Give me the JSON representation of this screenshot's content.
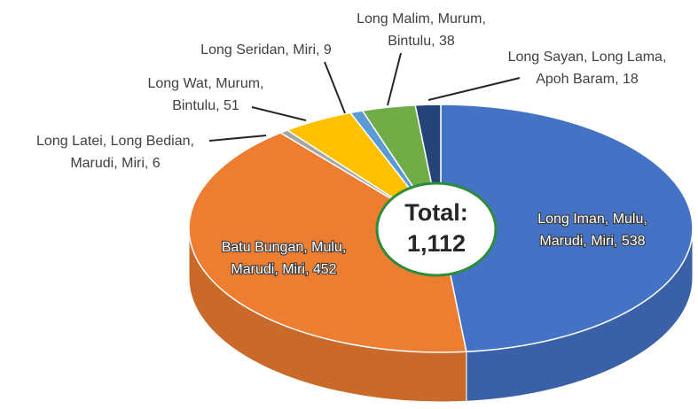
{
  "chart_data": {
    "type": "pie3d",
    "values": [
      538,
      452,
      6,
      51,
      9,
      38,
      18
    ],
    "value_labels": [
      "Long Iman, Mulu,\nMarudi, Miri, 538",
      "Batu Bungan, Mulu,\nMarudi, Miri, 452",
      "Long Latei, Long Bedian,\nMarudi, Miri, 6",
      "Long Wat, Murum,\nBintulu, 51",
      "Long Seridan, Miri, 9",
      "Long Malim, Murum,\nBintulu, 38",
      "Long Sayan, Long Lama,\nApoh Baram, 18"
    ],
    "colors": [
      "#4472c4",
      "#ed7d31",
      "#a5a5a5",
      "#ffc000",
      "#5b9bd5",
      "#70ad47",
      "#264478"
    ],
    "total_title": "Total:",
    "total": {
      "value": 1112,
      "label": "1,112"
    }
  }
}
